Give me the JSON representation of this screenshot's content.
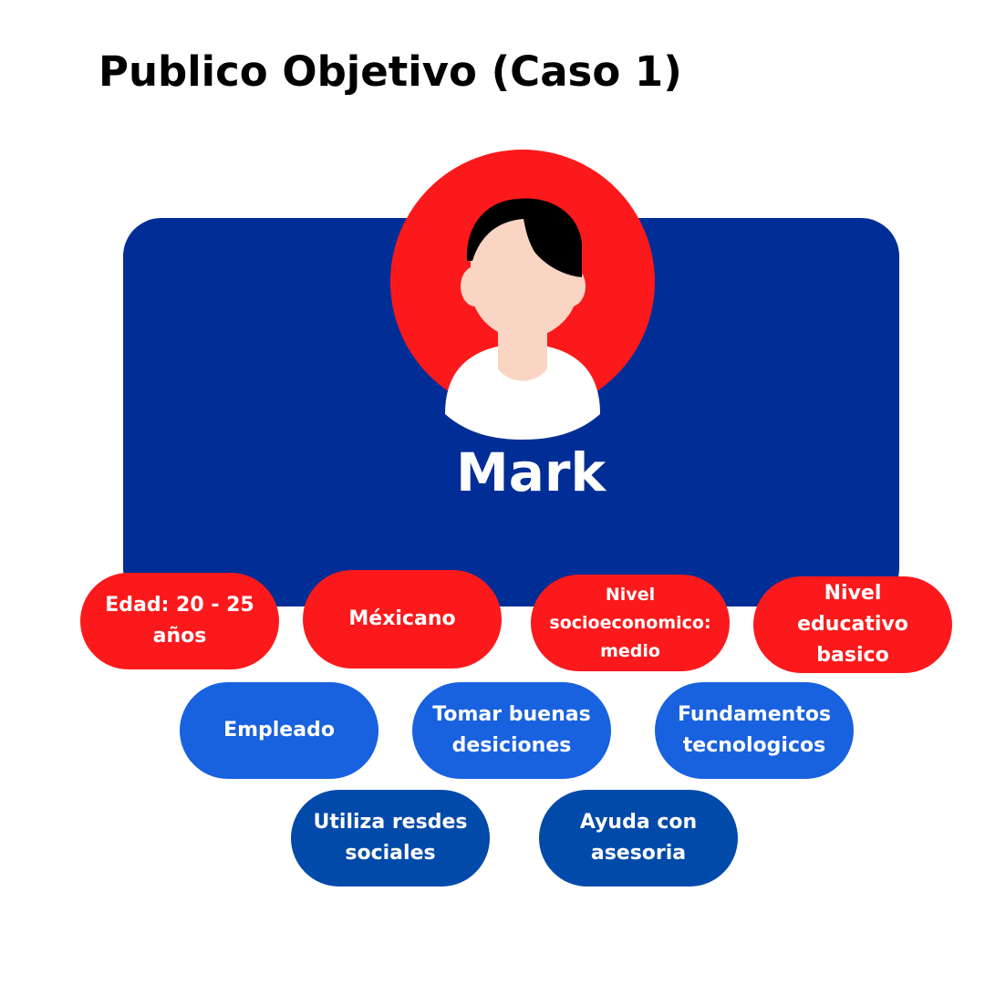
{
  "title": "Publico Objetivo (Caso 1)",
  "persona": {
    "name": "Mark",
    "avatar_icon": "person-avatar-icon"
  },
  "colors": {
    "card": "#002e96",
    "avatar_circle": "#fc191b",
    "red_pill": "#fc191b",
    "blue_pill": "#1861df",
    "navy_pill": "#024aa9",
    "skin": "#fad5c3",
    "hair": "#000000",
    "shirt": "#ffffff"
  },
  "traits": {
    "edad": "Edad: 20 - 25 años",
    "nacionalidad": "Méxicano",
    "nivel_socioeconomico": "Nivel socioeconomico: medio",
    "nivel_educativo": "Nivel educativo basico",
    "empleado": "Empleado",
    "decisiones": "Tomar buenas desiciones",
    "fundamentos": "Fundamentos tecnologicos",
    "redes": "Utiliza resdes sociales",
    "asesoria": "Ayuda con asesoria"
  }
}
